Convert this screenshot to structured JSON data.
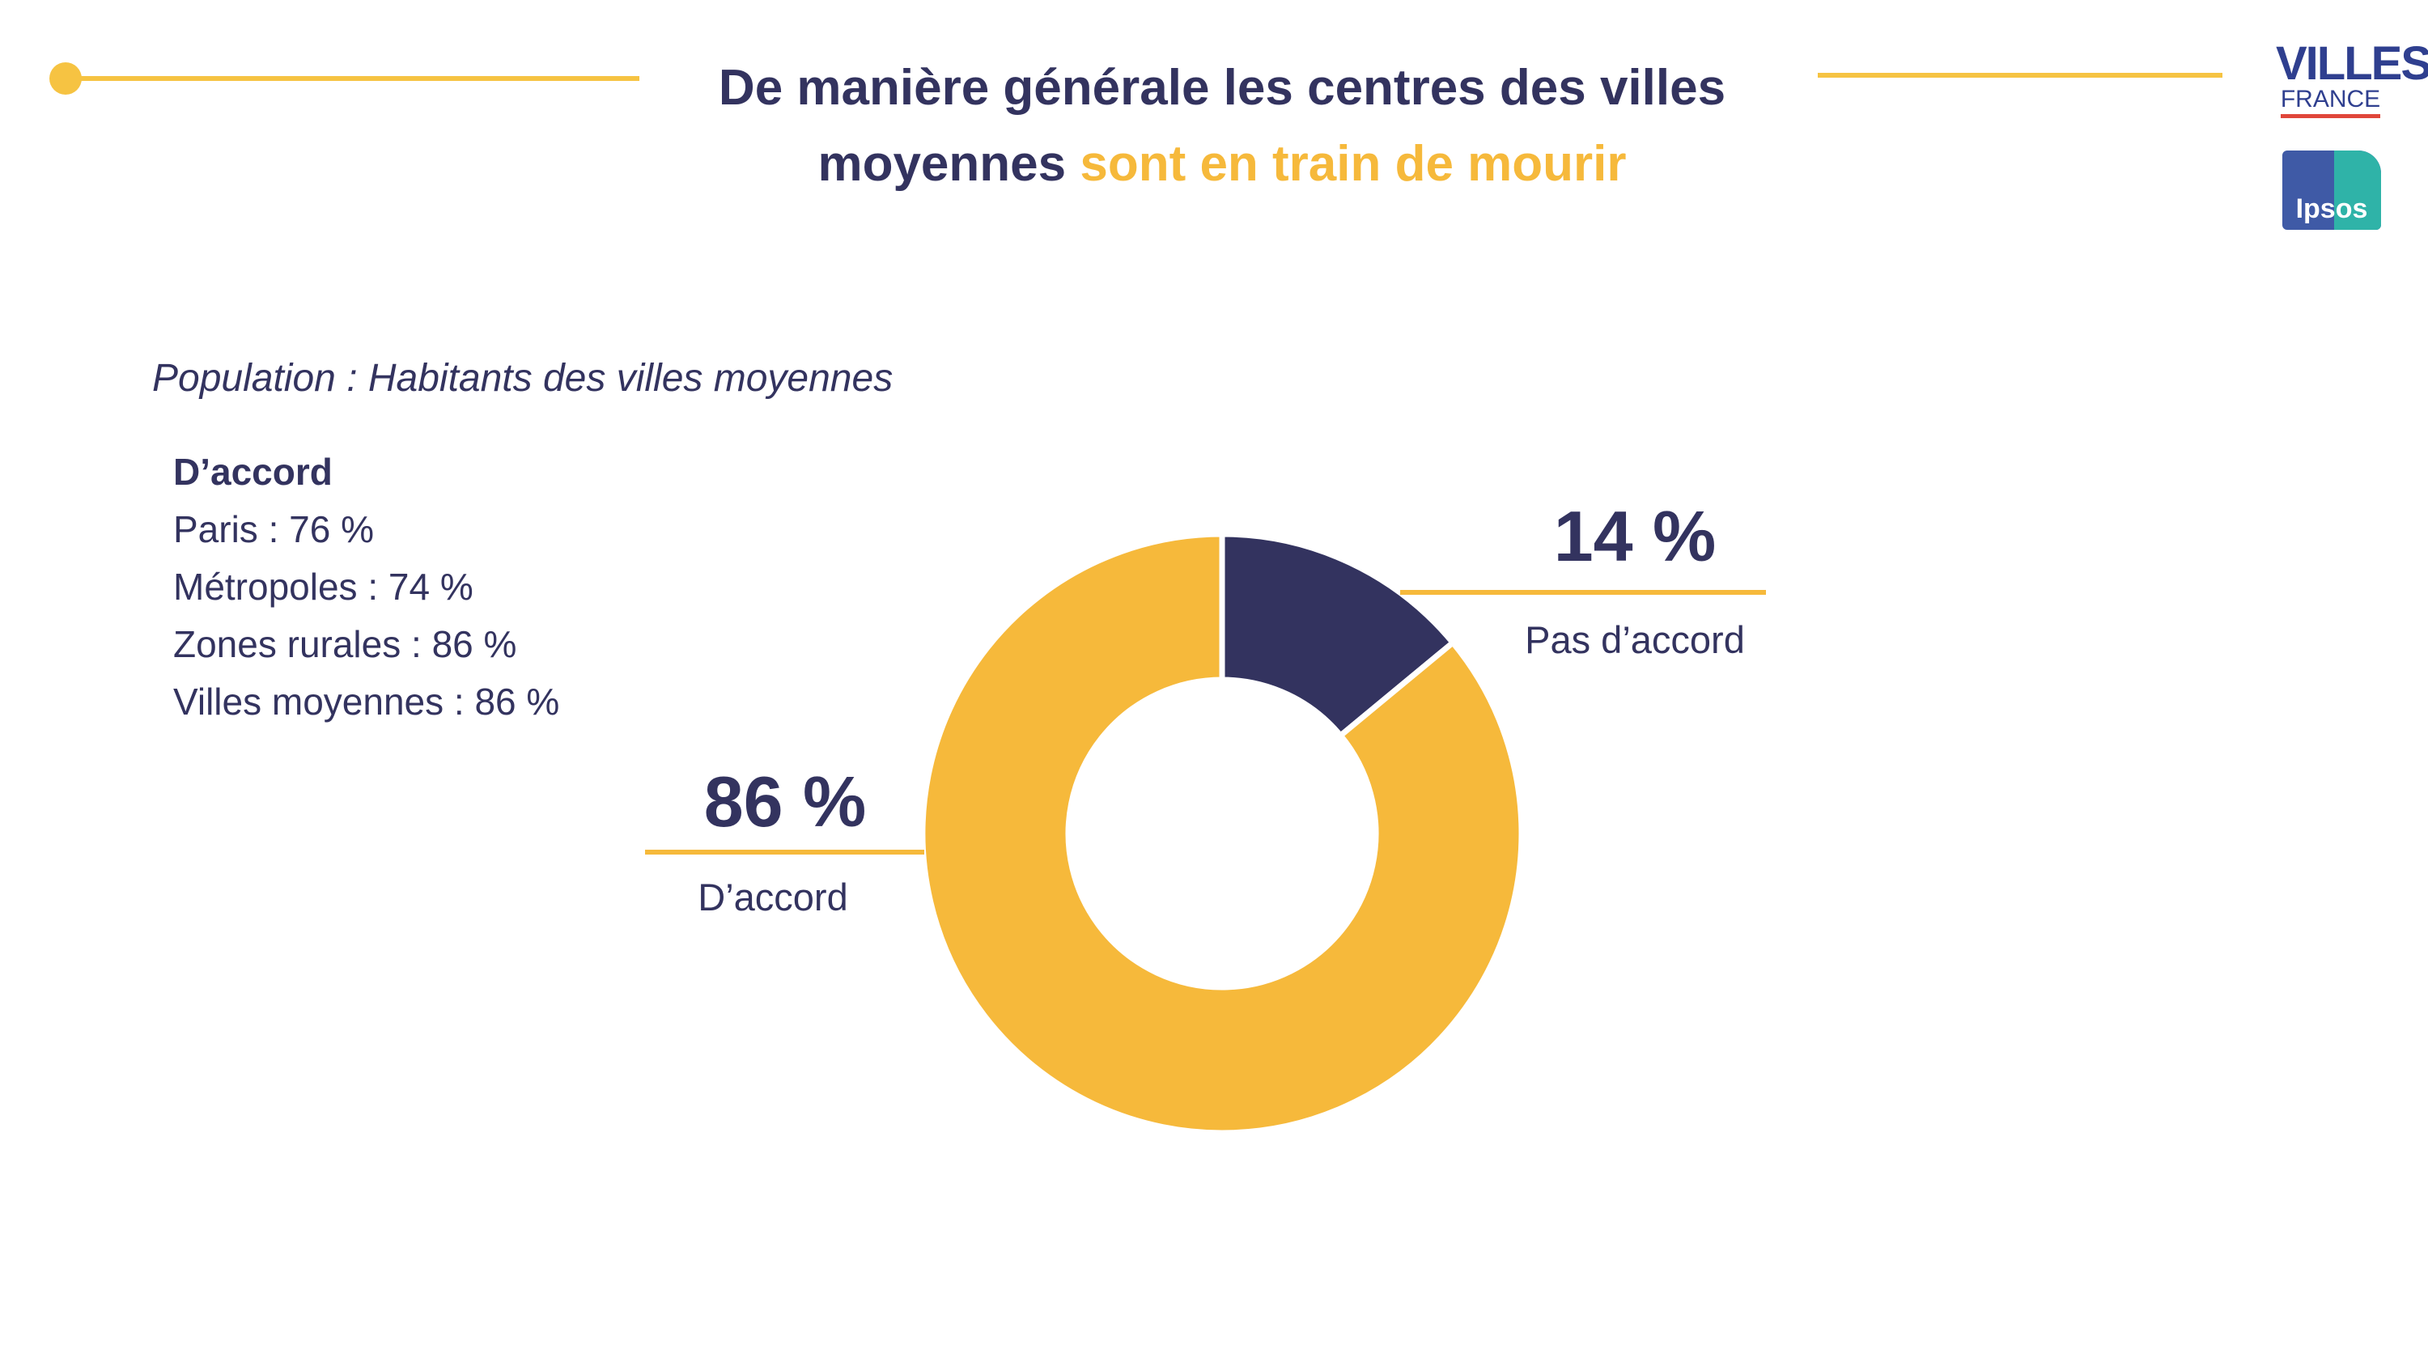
{
  "title": {
    "line1": "De manière générale les centres des villes",
    "line2_plain": "moyennes",
    "line2_accent": "sont en train de mourir"
  },
  "population": "Population : Habitants des villes moyennes",
  "agree_breakdown": {
    "heading": "D’accord",
    "rows": [
      "Paris : 76 %",
      "Métropoles : 74 %",
      "Zones rurales : 86 %",
      "Villes moyennes : 86 %"
    ]
  },
  "logos": {
    "villes_line1": "VILLES",
    "villes_line2": "FRANCE",
    "ipsos": "Ipsos"
  },
  "colors": {
    "navy": "#33335f",
    "yellow": "#f6b93b",
    "line_yellow": "#f6c342"
  },
  "chart_data": {
    "type": "pie",
    "variant": "donut",
    "categories": [
      "Pas d’accord",
      "D’accord"
    ],
    "values": [
      14,
      86
    ],
    "value_labels": [
      "14 %",
      "86 %"
    ],
    "colors": [
      "#33335f",
      "#f6b93b"
    ]
  }
}
